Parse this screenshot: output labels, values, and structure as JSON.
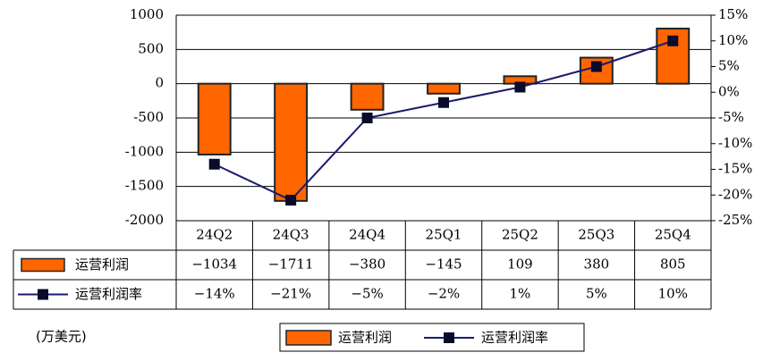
{
  "chart_data": {
    "type": "bar-line-table",
    "unit_note": "(万美元)",
    "categories": [
      "24Q2",
      "24Q3",
      "24Q4",
      "25Q1",
      "25Q2",
      "25Q3",
      "25Q4"
    ],
    "series": [
      {
        "name": "运营利润",
        "color": "#ff6600",
        "values": [
          -1034,
          -1711,
          -380,
          -145,
          109,
          380,
          805
        ],
        "value_labels": [
          "−1034",
          "−1711",
          "−380",
          "−145",
          "109",
          "380",
          "805"
        ]
      },
      {
        "name": "运营利润率",
        "color": "#1a1a6e",
        "axis": "y2",
        "values": [
          -14,
          -21,
          -5,
          -2,
          1,
          5,
          10
        ],
        "value_labels": [
          "−14%",
          "−21%",
          "−5%",
          "−2%",
          "1%",
          "5%",
          "10%"
        ]
      }
    ],
    "ylim": [
      -2000,
      1000
    ],
    "yticks": [
      -2000,
      -1500,
      -1000,
      -500,
      0,
      500,
      1000
    ],
    "y2lim": [
      -25,
      15
    ],
    "y2ticks": [
      {
        "value": -25,
        "label": "-25%"
      },
      {
        "value": -20,
        "label": "-20%"
      },
      {
        "value": -15,
        "label": "-15%"
      },
      {
        "value": -10,
        "label": "-10%"
      },
      {
        "value": -5,
        "label": "-5%"
      },
      {
        "value": 0,
        "label": "0%"
      },
      {
        "value": 5,
        "label": "5%"
      },
      {
        "value": 10,
        "label": "10%"
      },
      {
        "value": 15,
        "label": "15%"
      }
    ],
    "grid": true
  }
}
